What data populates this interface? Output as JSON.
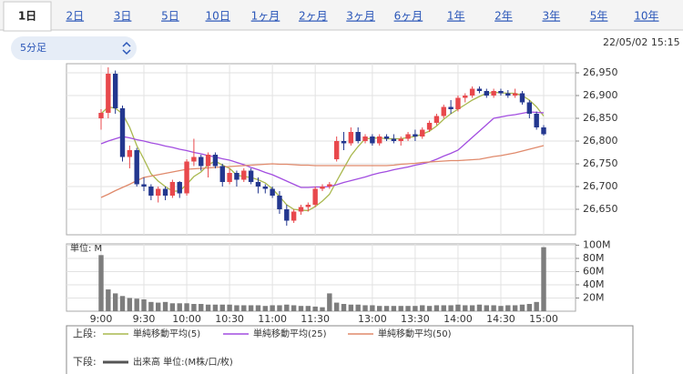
{
  "tabs": [
    "1日",
    "2日",
    "3日",
    "5日",
    "10日",
    "1ヶ月",
    "2ヶ月",
    "3ヶ月",
    "6ヶ月",
    "1年",
    "2年",
    "3年",
    "5年",
    "10年"
  ],
  "selected_tab": "1日",
  "interval": "5分足",
  "timestamp": "22/05/02 15:15",
  "legend": {
    "upper_label": "上段:",
    "lower_label": "下段:"
  },
  "chart_data": [
    {
      "type": "candlestick",
      "up_color": "#e8484c",
      "down_color": "#23378f",
      "grid": true,
      "open": [
        26850,
        26862,
        26948,
        26872,
        26765,
        26780,
        26705,
        26700,
        26680,
        26695,
        26680,
        26710,
        26685,
        26755,
        26765,
        26745,
        26770,
        26745,
        26710,
        26730,
        26715,
        26735,
        26710,
        26700,
        26695,
        26680,
        26650,
        26625,
        26645,
        26655,
        26660,
        26695,
        26700,
        26760,
        26800,
        26795,
        26820,
        26800,
        26810,
        26795,
        26810,
        26805,
        26800,
        26805,
        26815,
        26810,
        26825,
        26840,
        26855,
        26875,
        26870,
        26895,
        26900,
        26915,
        26910,
        26900,
        26910,
        26905,
        26900,
        26905,
        26885,
        26860,
        26830
      ],
      "high": [
        26870,
        26962,
        26955,
        26878,
        26790,
        26785,
        26720,
        26705,
        26700,
        26700,
        26715,
        26712,
        26760,
        26805,
        26770,
        26775,
        26775,
        26750,
        26740,
        26735,
        26740,
        26740,
        26720,
        26705,
        26700,
        26690,
        26660,
        26650,
        26660,
        26665,
        26700,
        26705,
        26710,
        26810,
        26820,
        26830,
        26830,
        26815,
        26815,
        26815,
        26815,
        26815,
        26810,
        26820,
        26825,
        26830,
        26845,
        26860,
        26880,
        26890,
        26900,
        26905,
        26920,
        26920,
        26915,
        26915,
        26915,
        26912,
        26915,
        26910,
        26890,
        26865,
        26835
      ],
      "low": [
        26825,
        26850,
        26860,
        26755,
        26740,
        26700,
        26690,
        26670,
        26665,
        26670,
        26675,
        26675,
        26680,
        26745,
        26735,
        26720,
        26740,
        26700,
        26705,
        26700,
        26710,
        26705,
        26685,
        26685,
        26675,
        26640,
        26614,
        26620,
        26638,
        26645,
        26655,
        26690,
        26695,
        26755,
        26780,
        26790,
        26795,
        26795,
        26790,
        26790,
        26800,
        26795,
        26790,
        26800,
        26800,
        26805,
        26820,
        26835,
        26850,
        26860,
        26865,
        26885,
        26895,
        26905,
        26895,
        26895,
        26900,
        26895,
        26895,
        26880,
        26850,
        26825,
        26812
      ],
      "close": [
        26862,
        26948,
        26872,
        26765,
        26780,
        26705,
        26700,
        26680,
        26695,
        26680,
        26710,
        26685,
        26755,
        26765,
        26745,
        26770,
        26745,
        26710,
        26730,
        26715,
        26735,
        26710,
        26700,
        26695,
        26680,
        26650,
        26625,
        26645,
        26655,
        26660,
        26695,
        26700,
        26705,
        26800,
        26795,
        26820,
        26800,
        26810,
        26795,
        26810,
        26805,
        26800,
        26805,
        26815,
        26810,
        26825,
        26840,
        26855,
        26875,
        26870,
        26895,
        26900,
        26915,
        26910,
        26900,
        26910,
        26905,
        26900,
        26905,
        26885,
        26860,
        26830,
        26815
      ],
      "series": [
        {
          "name": "単純移動平均(5)",
          "color": "#a9b84e",
          "values": [
            26860,
            26875,
            26872,
            26860,
            26830,
            26790,
            26760,
            26728,
            26712,
            26700,
            26690,
            26690,
            26705,
            26722,
            26732,
            26748,
            26756,
            26747,
            26740,
            26725,
            26722,
            26720,
            26715,
            26708,
            26695,
            26678,
            26660,
            26650,
            26648,
            26647,
            26656,
            26668,
            26683,
            26712,
            26740,
            26768,
            26788,
            26805,
            26806,
            26807,
            26805,
            26805,
            26805,
            26808,
            26810,
            26815,
            26822,
            26833,
            26848,
            26860,
            26870,
            26880,
            26890,
            26898,
            26905,
            26907,
            26906,
            26905,
            26905,
            26900,
            26890,
            26875,
            26855
          ]
        },
        {
          "name": "単純移動平均(25)",
          "color": "#a24de0",
          "values": [
            26794,
            26800,
            26805,
            26810,
            26807,
            26803,
            26800,
            26796,
            26793,
            26789,
            26786,
            26782,
            26779,
            26775,
            26772,
            26768,
            26765,
            26761,
            26758,
            26753,
            26748,
            26742,
            26737,
            26731,
            26726,
            26719,
            26712,
            26705,
            26698,
            26698,
            26699,
            26699,
            26700,
            26704,
            26709,
            26713,
            26717,
            26721,
            26726,
            26730,
            26733,
            26737,
            26740,
            26743,
            26747,
            26750,
            26754,
            26760,
            26767,
            26773,
            26780,
            26794,
            26808,
            26822,
            26836,
            26850,
            26853,
            26856,
            26858,
            26861,
            26864,
            26863,
            26862
          ]
        },
        {
          "name": "単純移動平均(50)",
          "color": "#e08a6c",
          "values": [
            26676,
            26683,
            26691,
            26698,
            26705,
            26713,
            26720,
            26723,
            26726,
            26729,
            26732,
            26735,
            26738,
            26739,
            26740,
            26741,
            26742,
            26743,
            26744,
            26745,
            26746,
            26747,
            26748,
            26749,
            26750,
            26749,
            26749,
            26748,
            26747,
            26747,
            26746,
            26746,
            26746,
            26746,
            26746,
            26746,
            26746,
            26746,
            26746,
            26746,
            26746,
            26747,
            26749,
            26750,
            26751,
            26753,
            26754,
            26755,
            26756,
            26757,
            26757,
            26758,
            26759,
            26760,
            26763,
            26766,
            26768,
            26771,
            26774,
            26778,
            26782,
            26786,
            26790
          ]
        }
      ],
      "ylim": [
        26594,
        26970
      ],
      "yticks": [
        {
          "value": 26650,
          "label": "26,650"
        },
        {
          "value": 26700,
          "label": "26,700"
        },
        {
          "value": 26750,
          "label": "26,750"
        },
        {
          "value": 26800,
          "label": "26,800"
        },
        {
          "value": 26850,
          "label": "26,850"
        },
        {
          "value": 26900,
          "label": "26,900"
        },
        {
          "value": 26950,
          "label": "26,950"
        }
      ]
    },
    {
      "type": "bar",
      "title": "単位: M",
      "grid": true,
      "categories": [
        "9:00",
        null,
        null,
        null,
        null,
        null,
        "9:30",
        null,
        null,
        null,
        null,
        null,
        "10:00",
        null,
        null,
        null,
        null,
        null,
        "10:30",
        null,
        null,
        null,
        null,
        null,
        "11:00",
        null,
        null,
        null,
        null,
        null,
        "11:30",
        null,
        null,
        null,
        null,
        null,
        null,
        null,
        "13:00",
        null,
        null,
        null,
        null,
        null,
        "13:30",
        null,
        null,
        null,
        null,
        null,
        "14:00",
        null,
        null,
        null,
        null,
        null,
        "14:30",
        null,
        null,
        null,
        null,
        null,
        "15:00"
      ],
      "series": [
        {
          "name": "出来高 単位:(M株/口/枚)",
          "color": "#7d7d7d",
          "values": [
            85,
            33,
            27,
            23,
            20,
            19,
            18,
            14,
            13,
            14,
            12,
            12,
            12,
            11,
            11,
            10,
            10,
            10,
            10,
            9,
            9,
            9,
            9,
            8,
            9,
            9,
            10,
            9,
            8,
            8,
            7,
            6,
            27,
            13,
            11,
            10,
            10,
            9,
            9,
            8,
            8,
            8,
            8,
            8,
            8,
            9,
            8,
            9,
            9,
            9,
            10,
            9,
            9,
            10,
            9,
            9,
            8,
            9,
            9,
            10,
            11,
            14,
            97
          ]
        }
      ],
      "ylim": [
        0,
        102
      ],
      "yticks": [
        {
          "value": 20,
          "label": "20M"
        },
        {
          "value": 40,
          "label": "40M"
        },
        {
          "value": 60,
          "label": "60M"
        },
        {
          "value": 80,
          "label": "80M"
        },
        {
          "value": 100,
          "label": "100M"
        }
      ]
    }
  ]
}
